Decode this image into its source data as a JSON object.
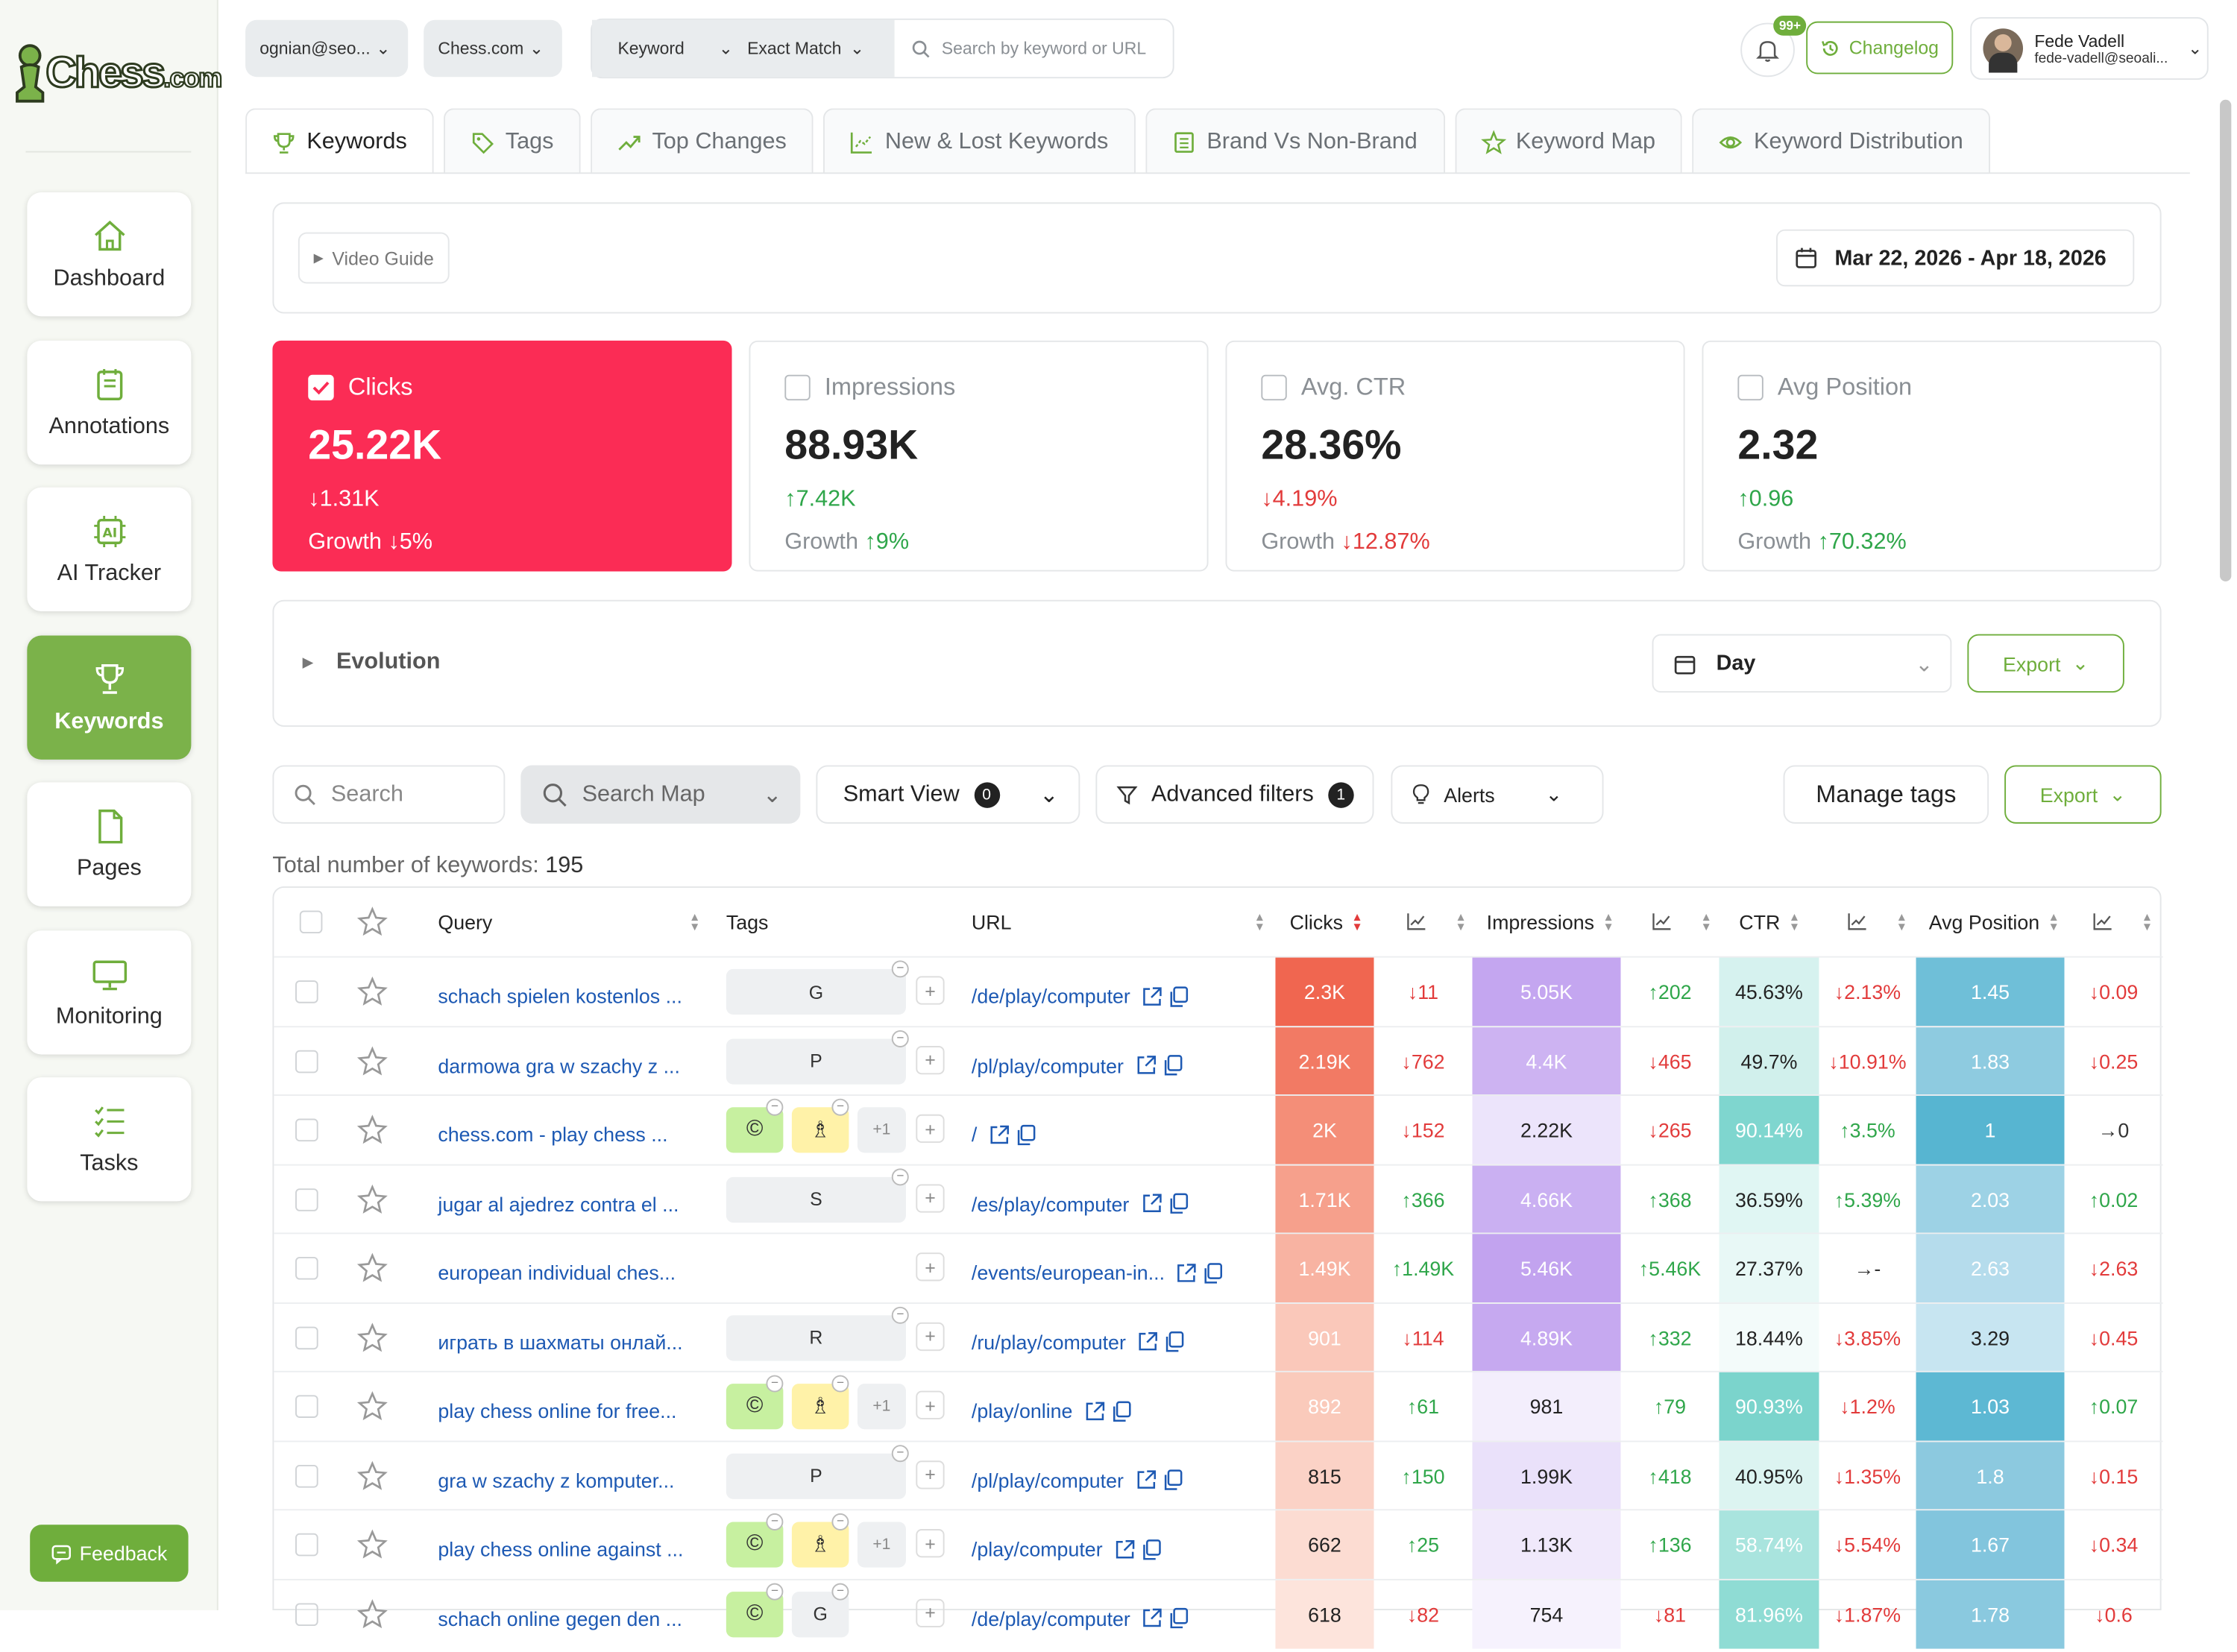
{
  "app": {
    "logo_text": "Chess",
    "logo_com": ".com",
    "feedback": "Feedback"
  },
  "nav": [
    {
      "label": "Dashboard",
      "icon": "home-icon"
    },
    {
      "label": "Annotations",
      "icon": "notes-icon"
    },
    {
      "label": "AI Tracker",
      "icon": "ai-chip-icon"
    },
    {
      "label": "Keywords",
      "icon": "trophy-icon"
    },
    {
      "label": "Pages",
      "icon": "page-icon"
    },
    {
      "label": "Monitoring",
      "icon": "monitor-icon"
    },
    {
      "label": "Tasks",
      "icon": "tasks-icon"
    }
  ],
  "topbar": {
    "account": "ognian@seo...",
    "site": "Chess.com",
    "keyword_sel": "Keyword",
    "match_sel": "Exact Match",
    "search_placeholder": "Search by keyword or URL",
    "notif_badge": "99+",
    "changelog": "Changelog",
    "user_name": "Fede Vadell",
    "user_email": "fede-vadell@seoali..."
  },
  "tabs": [
    "Keywords",
    "Tags",
    "Top Changes",
    "New & Lost Keywords",
    "Brand Vs Non-Brand",
    "Keyword Map",
    "Keyword Distribution"
  ],
  "video_guide": "Video Guide",
  "date_range": "Mar 22, 2026 - Apr 18, 2026",
  "metrics": [
    {
      "name": "Clicks",
      "value": "25.22K",
      "delta": "↓1.31K",
      "growth_label": "Growth",
      "growth": "↓5%",
      "dir": "dn",
      "gdir": "dn"
    },
    {
      "name": "Impressions",
      "value": "88.93K",
      "delta": "↑7.42K",
      "growth_label": "Growth",
      "growth": "↑9%",
      "dir": "up",
      "gdir": "up"
    },
    {
      "name": "Avg. CTR",
      "value": "28.36%",
      "delta": "↓4.19%",
      "growth_label": "Growth",
      "growth": "↓12.87%",
      "dir": "dn",
      "gdir": "dn"
    },
    {
      "name": "Avg Position",
      "value": "2.32",
      "delta": "↑0.96",
      "growth_label": "Growth",
      "growth": "↑70.32%",
      "dir": "up",
      "gdir": "up"
    }
  ],
  "evolution": {
    "title": "Evolution",
    "granularity": "Day",
    "export": "Export"
  },
  "filters": {
    "search": "Search",
    "search_map": "Search Map",
    "smart_view": "Smart View",
    "smart_view_count": "0",
    "advanced": "Advanced filters",
    "advanced_count": "1",
    "alerts": "Alerts",
    "manage_tags": "Manage tags",
    "export": "Export"
  },
  "total_label": "Total number of keywords:",
  "total_value": "195",
  "columns": {
    "query": "Query",
    "tags": "Tags",
    "url": "URL",
    "clicks": "Clicks",
    "impressions": "Impressions",
    "ctr": "CTR",
    "avg_position": "Avg Position"
  },
  "rows": [
    {
      "query": "schach spielen kostenlos ...",
      "tags": [
        "G"
      ],
      "url": "/de/play/computer",
      "clicks": "2.3K",
      "clicks_d": "↓11",
      "impr": "5.05K",
      "impr_d": "↑202",
      "ctr": "45.63%",
      "ctr_d": "↓2.13%",
      "pos": "1.45",
      "pos_d": "↓0.09"
    },
    {
      "query": "darmowa gra w szachy z ...",
      "tags": [
        "P"
      ],
      "url": "/pl/play/computer",
      "clicks": "2.19K",
      "clicks_d": "↓762",
      "impr": "4.4K",
      "impr_d": "↓465",
      "ctr": "49.7%",
      "ctr_d": "↓10.91%",
      "pos": "1.83",
      "pos_d": "↓0.25"
    },
    {
      "query": "chess.com - play chess ...",
      "tags": [
        "©",
        "♗",
        "+1"
      ],
      "url": "/",
      "clicks": "2K",
      "clicks_d": "↓152",
      "impr": "2.22K",
      "impr_d": "↓265",
      "ctr": "90.14%",
      "ctr_d": "↑3.5%",
      "pos": "1",
      "pos_d": "→0"
    },
    {
      "query": "jugar al ajedrez contra el ...",
      "tags": [
        "S"
      ],
      "url": "/es/play/computer",
      "clicks": "1.71K",
      "clicks_d": "↑366",
      "impr": "4.66K",
      "impr_d": "↑368",
      "ctr": "36.59%",
      "ctr_d": "↑5.39%",
      "pos": "2.03",
      "pos_d": "↑0.02"
    },
    {
      "query": "european individual ches...",
      "tags": [],
      "url": "/events/european-in...",
      "clicks": "1.49K",
      "clicks_d": "↑1.49K",
      "impr": "5.46K",
      "impr_d": "↑5.46K",
      "ctr": "27.37%",
      "ctr_d": "→-",
      "pos": "2.63",
      "pos_d": "↓2.63"
    },
    {
      "query": "играть в шахматы онлай...",
      "tags": [
        "R"
      ],
      "url": "/ru/play/computer",
      "clicks": "901",
      "clicks_d": "↓114",
      "impr": "4.89K",
      "impr_d": "↑332",
      "ctr": "18.44%",
      "ctr_d": "↓3.85%",
      "pos": "3.29",
      "pos_d": "↓0.45"
    },
    {
      "query": "play chess online for free...",
      "tags": [
        "©",
        "♗",
        "+1"
      ],
      "url": "/play/online",
      "clicks": "892",
      "clicks_d": "↑61",
      "impr": "981",
      "impr_d": "↑79",
      "ctr": "90.93%",
      "ctr_d": "↓1.2%",
      "pos": "1.03",
      "pos_d": "↑0.07"
    },
    {
      "query": "gra w szachy z komputer...",
      "tags": [
        "P"
      ],
      "url": "/pl/play/computer",
      "clicks": "815",
      "clicks_d": "↑150",
      "impr": "1.99K",
      "impr_d": "↑418",
      "ctr": "40.95%",
      "ctr_d": "↓1.35%",
      "pos": "1.8",
      "pos_d": "↓0.15"
    },
    {
      "query": "play chess online against ...",
      "tags": [
        "©",
        "♗",
        "+1"
      ],
      "url": "/play/computer",
      "clicks": "662",
      "clicks_d": "↑25",
      "impr": "1.13K",
      "impr_d": "↑136",
      "ctr": "58.74%",
      "ctr_d": "↓5.54%",
      "pos": "1.67",
      "pos_d": "↓0.34"
    },
    {
      "query": "schach online gegen den ...",
      "tags": [
        "©",
        "G"
      ],
      "url": "/de/play/computer",
      "clicks": "618",
      "clicks_d": "↓82",
      "impr": "754",
      "impr_d": "↓81",
      "ctr": "81.96%",
      "ctr_d": "↓1.87%",
      "pos": "1.78",
      "pos_d": "↓0.6"
    }
  ],
  "heat": {
    "clicks": [
      "#f06650",
      "#f27a64",
      "#f48e78",
      "#f6a08c",
      "#f8b3a2",
      "#fac8ba",
      "#facabb",
      "#fbd2c6",
      "#fcdcd2",
      "#fde4dc"
    ],
    "impr": [
      "#c4a6f0",
      "#cdb3f2",
      "#ece4fb",
      "#cab0f2",
      "#c2a3ef",
      "#c6a9f0",
      "#f3eefc",
      "#eae1fa",
      "#f0e9fb",
      "#f6f2fd"
    ],
    "ctr": [
      "#d6f2ef",
      "#d1f0ec",
      "#7fd6cf",
      "#e0f6f3",
      "#e8f8f6",
      "#f3fbfa",
      "#7bd4cc",
      "#dcf4f1",
      "#a9e4de",
      "#8fdcd4"
    ],
    "pos": [
      "#6fbfd8",
      "#8ecbe0",
      "#57b5d1",
      "#9dd2e5",
      "#b5dcec",
      "#c7e5f1",
      "#5db8d3",
      "#8cc9df",
      "#82c5dd",
      "#8ac9df"
    ]
  },
  "colors": {
    "accent": "#6fae3c",
    "clicks_card": "#fb2c55"
  }
}
